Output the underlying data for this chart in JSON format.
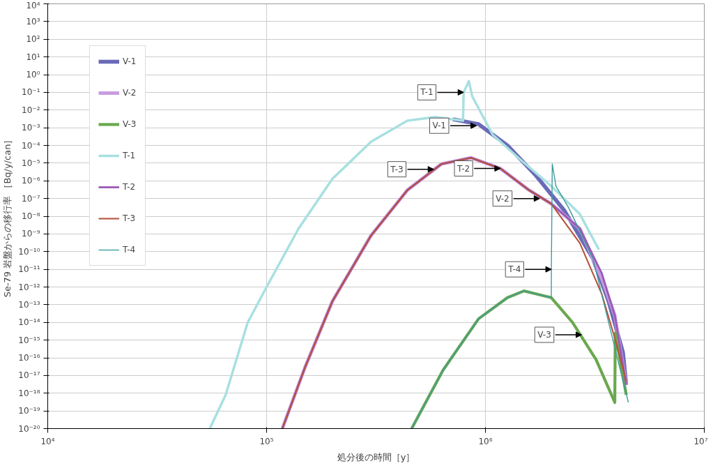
{
  "chart_data": {
    "type": "line",
    "xlabel": "処分後の時間［y］",
    "ylabel": "Se-79 岩盤からの移行率 ［Bq/y/can］",
    "log": "xy",
    "grid": true,
    "legend": "top left",
    "xlim": [
      10000,
      10000000
    ],
    "xticks": [
      {
        "value": 10000,
        "label": "10⁴"
      },
      {
        "value": 100000,
        "label": "10⁵"
      },
      {
        "value": 1000000,
        "label": "10⁶"
      },
      {
        "value": 10000000,
        "label": "10⁷"
      }
    ],
    "ylim": [
      1e-20,
      10000
    ],
    "yticks": [
      {
        "value": 10000.0,
        "label": "10⁴"
      },
      {
        "value": 1000.0,
        "label": "10³"
      },
      {
        "value": 100.0,
        "label": "10²"
      },
      {
        "value": 10.0,
        "label": "10¹"
      },
      {
        "value": 1,
        "label": "10⁰"
      },
      {
        "value": 0.1,
        "label": "10⁻¹"
      },
      {
        "value": 0.01,
        "label": "10⁻²"
      },
      {
        "value": 0.001,
        "label": "10⁻³"
      },
      {
        "value": 0.0001,
        "label": "10⁻⁴"
      },
      {
        "value": 1e-05,
        "label": "10⁻⁵"
      },
      {
        "value": 1e-06,
        "label": "10⁻⁶"
      },
      {
        "value": 1e-07,
        "label": "10⁻⁷"
      },
      {
        "value": 1e-08,
        "label": "10⁻⁸"
      },
      {
        "value": 1e-09,
        "label": "10⁻⁹"
      },
      {
        "value": 1e-10,
        "label": "10⁻¹⁰"
      },
      {
        "value": 1e-11,
        "label": "10⁻¹¹"
      },
      {
        "value": 1e-12,
        "label": "10⁻¹²"
      },
      {
        "value": 1e-13,
        "label": "10⁻¹³"
      },
      {
        "value": 1e-14,
        "label": "10⁻¹⁴"
      },
      {
        "value": 1e-15,
        "label": "10⁻¹⁵"
      },
      {
        "value": 1e-16,
        "label": "10⁻¹⁶"
      },
      {
        "value": 1e-17,
        "label": "10⁻¹⁷"
      },
      {
        "value": 1e-18,
        "label": "10⁻¹⁸"
      },
      {
        "value": 1e-19,
        "label": "10⁻¹⁹"
      },
      {
        "value": 1e-20,
        "label": "10⁻²⁰"
      }
    ],
    "series": [
      {
        "name": "V-1",
        "color": "#6a6ab8",
        "x": [
          710000,
          930000,
          1260000,
          1700000,
          2300000,
          3100000,
          3650000,
          4250000,
          4400000
        ],
        "values": [
          0.003,
          0.0016,
          0.0001,
          2e-06,
          2e-08,
          4e-11,
          1.6e-13,
          2e-16,
          3e-18
        ]
      },
      {
        "name": "V-2",
        "color": "#c89be0",
        "x": [
          118000,
          150000,
          200000,
          300000,
          440000,
          630000,
          860000,
          1170000,
          1580000,
          2000000,
          2700000,
          3400000,
          3900000,
          4400000
        ],
        "values": [
          1e-20,
          3e-17,
          1.6e-13,
          8e-10,
          3e-07,
          9e-06,
          2e-05,
          5e-06,
          3e-07,
          5e-08,
          2e-09,
          3e-12,
          2.5e-14,
          3e-18
        ]
      },
      {
        "name": "V-3",
        "color": "#6aa84f",
        "x": [
          460000,
          640000,
          930000,
          1260000,
          1500000,
          2000000,
          2500000,
          3200000,
          3900000,
          3920000,
          4400000
        ],
        "values": [
          1e-20,
          2e-17,
          1.6e-14,
          2.5e-13,
          6e-13,
          2.5e-13,
          1e-14,
          8e-17,
          3e-19,
          2.5e-15,
          8e-19
        ]
      },
      {
        "name": "T-1",
        "color": "#a8e0e0",
        "x": [
          55000,
          65000,
          82000,
          100000,
          140000,
          200000,
          300000,
          440000,
          590000,
          790000,
          795000,
          840000,
          870000,
          930000,
          1080000,
          1470000,
          2000000,
          2700000,
          3300000
        ],
        "values": [
          1e-20,
          8e-19,
          1e-14,
          1e-12,
          2e-09,
          1.3e-06,
          0.00016,
          0.0025,
          0.004,
          0.0025,
          0.1,
          0.43,
          0.06,
          0.0126,
          0.0004,
          1.3e-05,
          5e-07,
          1.3e-08,
          1.3e-10
        ]
      },
      {
        "name": "T-2",
        "color": "#9b59b6",
        "x": [
          118000,
          150000,
          200000,
          300000,
          440000,
          630000,
          860000,
          1170000,
          1580000,
          2000000,
          2700000,
          3400000,
          3900000,
          4400000
        ],
        "values": [
          1e-20,
          3e-17,
          1.6e-13,
          8e-10,
          3e-07,
          9e-06,
          2e-05,
          5e-06,
          3e-07,
          5e-08,
          2e-09,
          6e-12,
          2.5e-14,
          3e-18
        ]
      },
      {
        "name": "T-3",
        "color": "#b5533c",
        "x": [
          118000,
          150000,
          200000,
          300000,
          440000,
          630000,
          860000,
          1170000,
          1580000,
          2000000,
          2700000,
          3400000,
          3900000,
          4400000
        ],
        "values": [
          1e-20,
          3e-17,
          1.6e-13,
          8e-10,
          3e-07,
          9e-06,
          2e-05,
          5e-06,
          3e-07,
          5e-08,
          3e-10,
          4e-13,
          1.3e-15,
          5e-18
        ]
      },
      {
        "name": "T-4",
        "color": "#3d9c9c",
        "x": [
          460000,
          640000,
          930000,
          1260000,
          1500000,
          2000000,
          2001000,
          2020000,
          2100000,
          2400000,
          3100000,
          4250000,
          4500000
        ],
        "values": [
          1e-20,
          2e-17,
          1.6e-14,
          2.5e-13,
          6e-13,
          2.5e-13,
          1e-11,
          9e-06,
          5e-07,
          3e-08,
          4e-11,
          5e-18,
          3e-19
        ]
      }
    ],
    "annotations": [
      {
        "text": "T-1",
        "x": 795000,
        "y": 0.1
      },
      {
        "text": "V-1",
        "x": 910000,
        "y": 0.0013
      },
      {
        "text": "T-3",
        "x": 580000,
        "y": 4.5e-06
      },
      {
        "text": "T-2",
        "x": 1170000,
        "y": 5e-06
      },
      {
        "text": "V-2",
        "x": 1770000,
        "y": 1e-07
      },
      {
        "text": "T-4",
        "x": 2001000,
        "y": 1e-11
      },
      {
        "text": "V-3",
        "x": 2750000,
        "y": 2e-15
      }
    ]
  }
}
